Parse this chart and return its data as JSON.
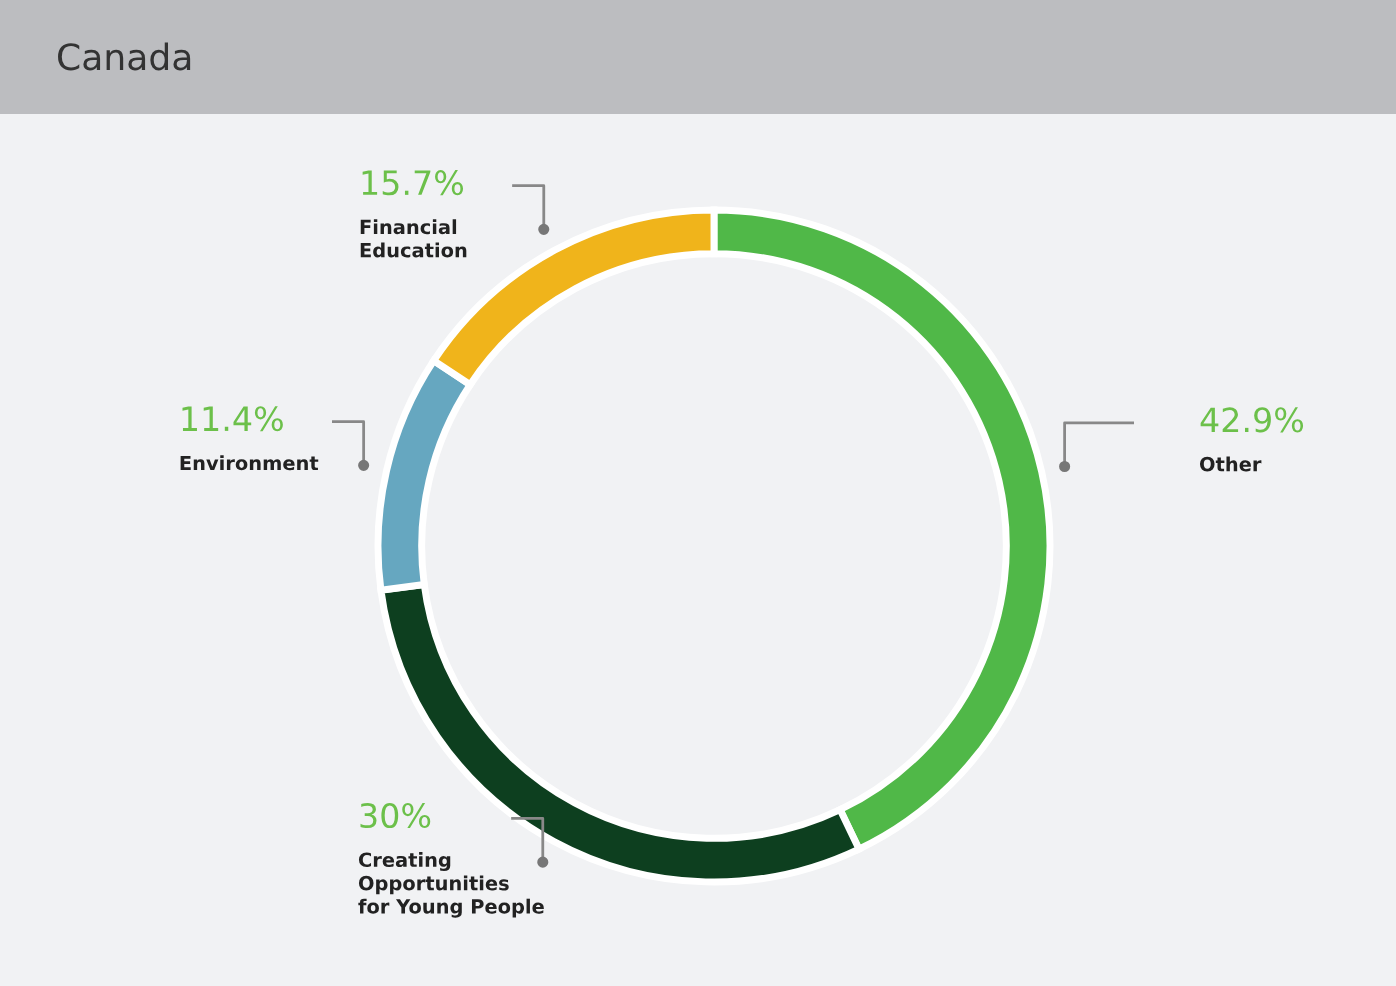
{
  "chart_data": {
    "type": "donut",
    "title": "Canada",
    "categories": [
      "Other",
      "Creating\nOpportunities\nfor Young People",
      "Environment",
      "Financial\nEducation"
    ],
    "values": [
      42.9,
      30,
      11.4,
      15.7
    ],
    "colors": [
      "#50b848",
      "#0d3f1f",
      "#66a7c0",
      "#f0b41b"
    ],
    "value_labels": [
      "42.9%",
      "30%",
      "11.4%",
      "15.7%"
    ]
  }
}
